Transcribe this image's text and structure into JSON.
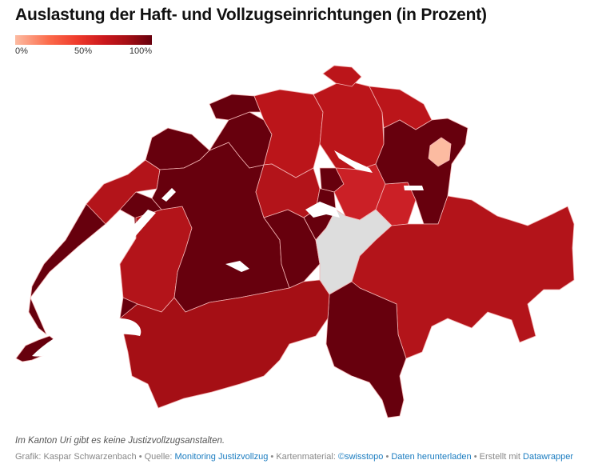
{
  "title": "Auslastung der Haft- und Vollzugseinrichtungen (in Prozent)",
  "legend": {
    "min_label": "0%",
    "mid_label": "50%",
    "max_label": "100%"
  },
  "note": "Im Kanton Uri gibt es keine Justizvollzugsanstalten.",
  "footer": {
    "credit": "Grafik: Kaspar Schwarzenbach",
    "source_label": "Quelle:",
    "source_link": "Monitoring Justizvollzug",
    "map_label": "Kartenmaterial:",
    "map_link": "©swisstopo",
    "download_link": "Daten herunterladen",
    "made_with_label": "Erstellt mit",
    "made_with_link": "Datawrapper",
    "separator": "•"
  },
  "colors": {
    "very_high": "#67000d",
    "high": "#a50f15",
    "mid_high": "#bb151a",
    "mid": "#cb2026",
    "low": "#fcbba1",
    "no_data": "#dddddd",
    "border": "#f3b3b3",
    "lake": "#ffffff"
  }
}
